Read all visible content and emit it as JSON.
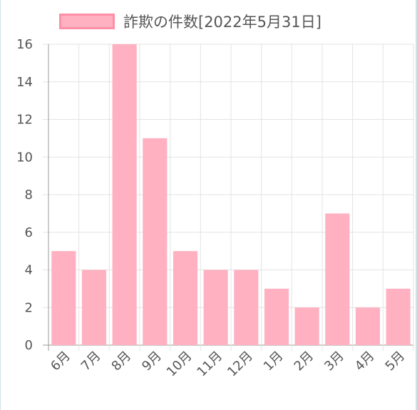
{
  "chart_data": {
    "type": "bar",
    "series": [
      {
        "name": "詐欺の件数[2022年5月31日]",
        "values": [
          5,
          4,
          16,
          11,
          5,
          4,
          4,
          3,
          2,
          7,
          2,
          3
        ],
        "color": "#ffb1c1",
        "border_color": "#ff8fa6"
      }
    ],
    "categories": [
      "6月",
      "7月",
      "8月",
      "9月",
      "10月",
      "11月",
      "12月",
      "1月",
      "2月",
      "3月",
      "4月",
      "5月"
    ],
    "ylim": [
      0,
      16
    ],
    "yticks": [
      "0",
      "2",
      "4",
      "6",
      "8",
      "10",
      "12",
      "14",
      "16"
    ],
    "grid": true,
    "legend_position": "top"
  }
}
